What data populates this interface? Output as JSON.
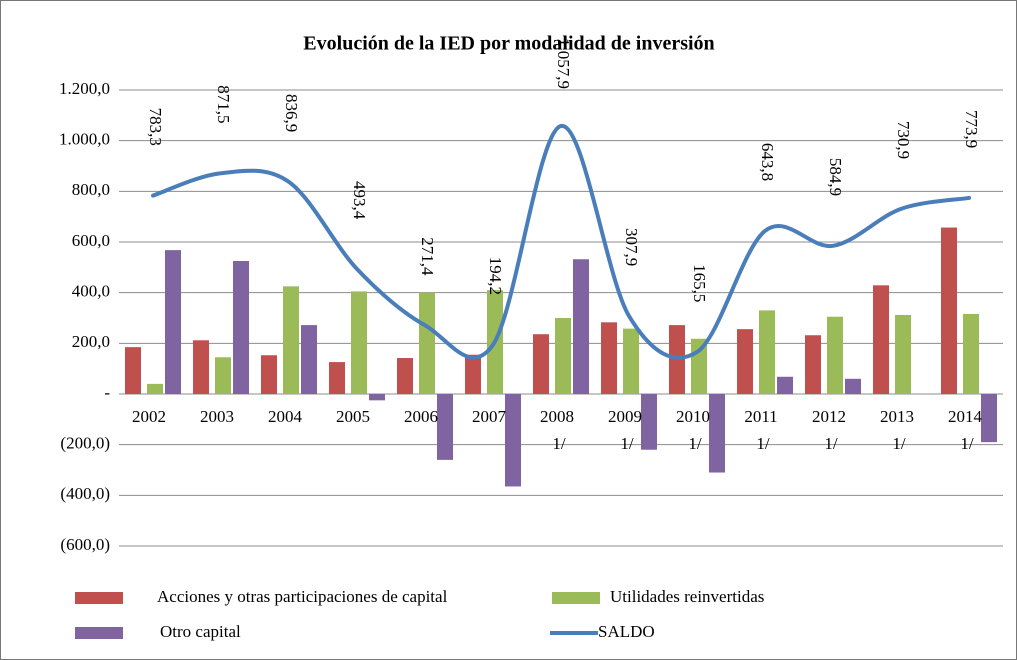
{
  "chart_data": {
    "type": "bar",
    "title": "Evolución de la IED por modalidad de inversión",
    "categories": [
      [
        "2002"
      ],
      [
        "2003"
      ],
      [
        "2004"
      ],
      [
        "2005"
      ],
      [
        "2006"
      ],
      [
        "2007"
      ],
      [
        "2008",
        "1/"
      ],
      [
        "2009",
        "1/"
      ],
      [
        "2010",
        "1/"
      ],
      [
        "2011",
        "1/"
      ],
      [
        "2012",
        "1/"
      ],
      [
        "2013",
        "1/"
      ],
      [
        "2014",
        "1/"
      ]
    ],
    "series": [
      {
        "name": "Acciones y otras participaciones de capital",
        "color": "#c0504d",
        "type": "bar",
        "values": [
          185,
          212,
          153,
          126,
          142,
          155,
          236,
          283,
          272,
          256,
          232,
          429,
          657
        ]
      },
      {
        "name": "Utilidades reinvertidas",
        "color": "#9bbb59",
        "type": "bar",
        "values": [
          40,
          145,
          425,
          405,
          400,
          410,
          300,
          258,
          218,
          330,
          305,
          312,
          316
        ]
      },
      {
        "name": "Otro capital",
        "color": "#8064a2",
        "type": "bar",
        "values": [
          568,
          525,
          272,
          -25,
          -260,
          -365,
          532,
          -220,
          -310,
          68,
          60,
          null,
          -190
        ]
      },
      {
        "name": "SALDO",
        "color": "#4a7ebb",
        "type": "line",
        "values": [
          783.3,
          871.5,
          836.9,
          493.4,
          271.4,
          194.2,
          1057.9,
          307.9,
          165.5,
          643.8,
          584.9,
          730.9,
          773.9
        ],
        "value_labels": [
          "783,3",
          "871,5",
          "836,9",
          "493,4",
          "271,4",
          "194,2",
          "1.057,9",
          "307,9",
          "165,5",
          "643,8",
          "584,9",
          "730,9",
          "773,9"
        ]
      }
    ],
    "ylim": [
      -600,
      1200
    ],
    "yticks": [
      {
        "value": -600,
        "label": "(600,0)"
      },
      {
        "value": -400,
        "label": "(400,0)"
      },
      {
        "value": -200,
        "label": "(200,0)"
      },
      {
        "value": 0,
        "label": "-"
      },
      {
        "value": 200,
        "label": "200,0"
      },
      {
        "value": 400,
        "label": "400,0"
      },
      {
        "value": 600,
        "label": "600,0"
      },
      {
        "value": 800,
        "label": "800,0"
      },
      {
        "value": 1000,
        "label": "1.000,0"
      },
      {
        "value": 1200,
        "label": "1.200,0"
      }
    ],
    "grid": true,
    "legend": "bottom"
  }
}
